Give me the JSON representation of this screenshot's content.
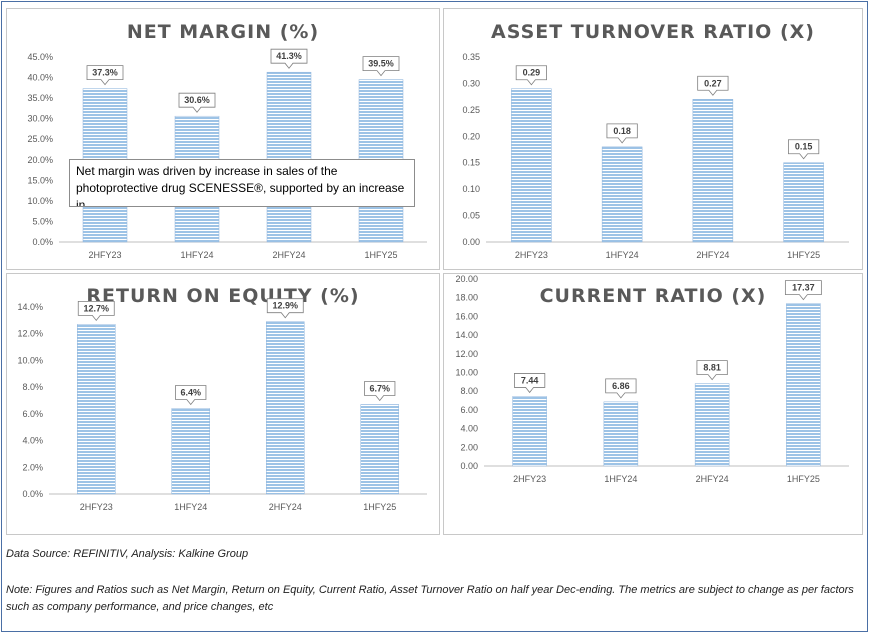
{
  "chart_data": [
    {
      "id": "net_margin",
      "type": "bar",
      "title": "NET MARGIN (%)",
      "categories": [
        "2HFY23",
        "1HFY24",
        "2HFY24",
        "1HFY25"
      ],
      "values": [
        37.3,
        30.6,
        41.3,
        39.5
      ],
      "data_labels": [
        "37.3%",
        "30.6%",
        "41.3%",
        "39.5%"
      ],
      "ylim": [
        0,
        45
      ],
      "yticks": [
        0,
        5,
        10,
        15,
        20,
        25,
        30,
        35,
        40,
        45
      ],
      "ytick_labels": [
        "0.0%",
        "5.0%",
        "10.0%",
        "15.0%",
        "20.0%",
        "25.0%",
        "30.0%",
        "35.0%",
        "40.0%",
        "45.0%"
      ],
      "xlabel": "",
      "ylabel": "",
      "grid": false,
      "annotation": "Net margin was driven by increase in sales of the photoprotective drug SCENESSE®, supported by an increase in"
    },
    {
      "id": "asset_turnover",
      "type": "bar",
      "title": "ASSET TURNOVER RATIO (X)",
      "categories": [
        "2HFY23",
        "1HFY24",
        "2HFY24",
        "1HFY25"
      ],
      "values": [
        0.29,
        0.18,
        0.27,
        0.15
      ],
      "data_labels": [
        "0.29",
        "0.18",
        "0.27",
        "0.15"
      ],
      "ylim": [
        0,
        0.35
      ],
      "yticks": [
        0,
        0.05,
        0.1,
        0.15,
        0.2,
        0.25,
        0.3,
        0.35
      ],
      "ytick_labels": [
        "0.00",
        "0.05",
        "0.10",
        "0.15",
        "0.20",
        "0.25",
        "0.30",
        "0.35"
      ],
      "xlabel": "",
      "ylabel": "",
      "grid": false
    },
    {
      "id": "roe",
      "type": "bar",
      "title": "RETURN ON EQUITY (%)",
      "categories": [
        "2HFY23",
        "1HFY24",
        "2HFY24",
        "1HFY25"
      ],
      "values": [
        12.7,
        6.4,
        12.9,
        6.7
      ],
      "data_labels": [
        "12.7%",
        "6.4%",
        "12.9%",
        "6.7%"
      ],
      "ylim": [
        0,
        14
      ],
      "yticks": [
        0,
        2,
        4,
        6,
        8,
        10,
        12,
        14
      ],
      "ytick_labels": [
        "0.0%",
        "2.0%",
        "4.0%",
        "6.0%",
        "8.0%",
        "10.0%",
        "12.0%",
        "14.0%"
      ],
      "xlabel": "",
      "ylabel": "",
      "grid": false
    },
    {
      "id": "current_ratio",
      "type": "bar",
      "title": "CURRENT RATIO (X)",
      "categories": [
        "2HFY23",
        "1HFY24",
        "2HFY24",
        "1HFY25"
      ],
      "values": [
        7.44,
        6.86,
        8.81,
        17.37
      ],
      "data_labels": [
        "7.44",
        "6.86",
        "8.81",
        "17.37"
      ],
      "ylim": [
        0,
        20
      ],
      "yticks": [
        0,
        2,
        4,
        6,
        8,
        10,
        12,
        14,
        16,
        18,
        20
      ],
      "ytick_labels": [
        "0.00",
        "2.00",
        "4.00",
        "6.00",
        "8.00",
        "10.00",
        "12.00",
        "14.00",
        "16.00",
        "18.00",
        "20.00"
      ],
      "xlabel": "",
      "ylabel": "",
      "grid": false
    }
  ],
  "colors": {
    "bar_fill": "#9dc3e6",
    "bar_stripe": "#ffffff",
    "axis": "#bfbfbf",
    "title": "#595959",
    "frame": "#4a6fa5"
  },
  "footer": {
    "source": "Data Source: REFINITIV, Analysis: Kalkine Group",
    "note": "Note: Figures and Ratios such as Net Margin, Return on Equity, Current Ratio, Asset Turnover Ratio on half year Dec-ending. The metrics are subject to change as per factors such as company performance, and price changes, etc"
  }
}
